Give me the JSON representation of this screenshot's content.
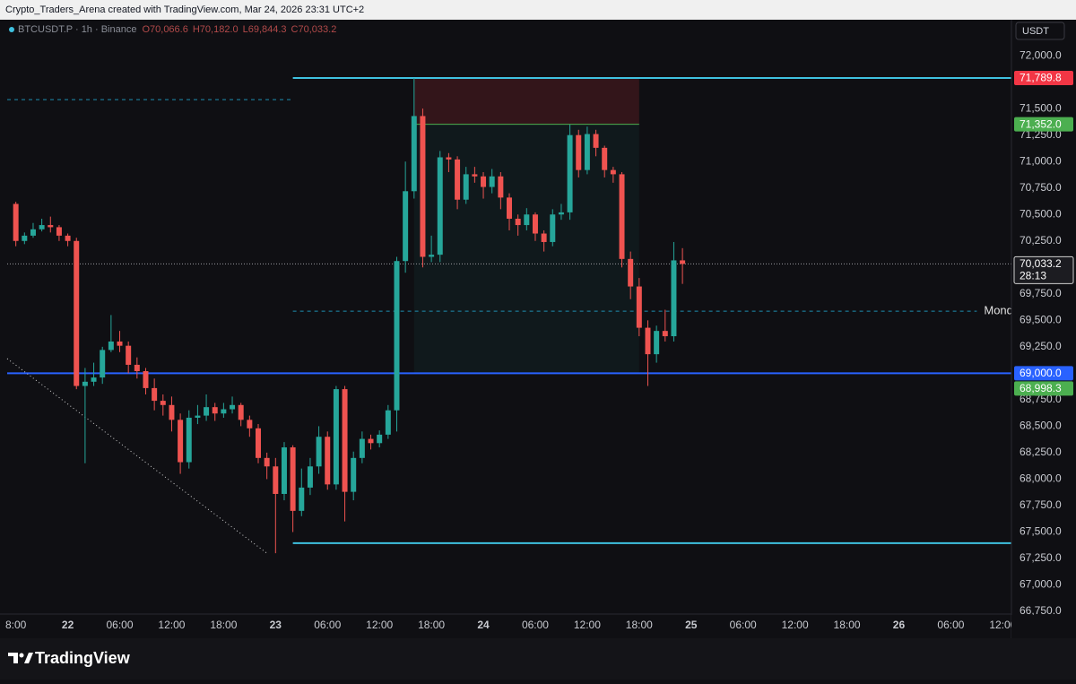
{
  "chart_data": {
    "type": "candlestick",
    "header": "Crypto_Traders_Arena created with TradingView.com, Mar 24, 2026 23:31 UTC+2",
    "legend": {
      "symbol": "BTCUSDT.P · 1h · Binance",
      "ohlc": [
        "O70,066.6",
        "H70,182.0",
        "L69,844.3",
        "C70,033.2"
      ]
    },
    "currency": "USDT",
    "brand": "TradingView",
    "up_color": "#26a69a",
    "down_color": "#ef5350",
    "x": [
      "2026-03-21T18:00",
      "2026-03-21T19:00",
      "2026-03-21T20:00",
      "2026-03-21T21:00",
      "2026-03-21T22:00",
      "2026-03-21T23:00",
      "2026-03-22T00:00",
      "2026-03-22T01:00",
      "2026-03-22T02:00",
      "2026-03-22T03:00",
      "2026-03-22T04:00",
      "2026-03-22T05:00",
      "2026-03-22T06:00",
      "2026-03-22T07:00",
      "2026-03-22T08:00",
      "2026-03-22T09:00",
      "2026-03-22T10:00",
      "2026-03-22T11:00",
      "2026-03-22T12:00",
      "2026-03-22T13:00",
      "2026-03-22T14:00",
      "2026-03-22T15:00",
      "2026-03-22T16:00",
      "2026-03-22T17:00",
      "2026-03-22T18:00",
      "2026-03-22T19:00",
      "2026-03-22T20:00",
      "2026-03-22T21:00",
      "2026-03-22T22:00",
      "2026-03-22T23:00",
      "2026-03-23T00:00",
      "2026-03-23T01:00",
      "2026-03-23T02:00",
      "2026-03-23T03:00",
      "2026-03-23T04:00",
      "2026-03-23T05:00",
      "2026-03-23T06:00",
      "2026-03-23T07:00",
      "2026-03-23T08:00",
      "2026-03-23T09:00",
      "2026-03-23T10:00",
      "2026-03-23T11:00",
      "2026-03-23T12:00",
      "2026-03-23T13:00",
      "2026-03-23T14:00",
      "2026-03-23T15:00",
      "2026-03-23T16:00",
      "2026-03-23T17:00",
      "2026-03-23T18:00",
      "2026-03-23T19:00",
      "2026-03-23T20:00",
      "2026-03-23T21:00",
      "2026-03-23T22:00",
      "2026-03-23T23:00",
      "2026-03-24T00:00",
      "2026-03-24T01:00",
      "2026-03-24T02:00",
      "2026-03-24T03:00",
      "2026-03-24T04:00",
      "2026-03-24T05:00",
      "2026-03-24T06:00",
      "2026-03-24T07:00",
      "2026-03-24T08:00",
      "2026-03-24T09:00",
      "2026-03-24T10:00",
      "2026-03-24T11:00",
      "2026-03-24T12:00",
      "2026-03-24T13:00",
      "2026-03-24T14:00",
      "2026-03-24T15:00",
      "2026-03-24T16:00",
      "2026-03-24T17:00",
      "2026-03-24T18:00",
      "2026-03-24T19:00",
      "2026-03-24T20:00",
      "2026-03-24T21:00",
      "2026-03-24T22:00",
      "2026-03-24T23:00"
    ],
    "open": [
      70600,
      70250,
      70300,
      70360,
      70400,
      70380,
      70300,
      70250,
      68880,
      68920,
      68960,
      69220,
      69300,
      69260,
      69080,
      69020,
      68860,
      68740,
      68700,
      68560,
      68160,
      68580,
      68600,
      68680,
      68620,
      68660,
      68700,
      68560,
      68480,
      68200,
      68120,
      67860,
      68300,
      67700,
      67920,
      68120,
      68400,
      67950,
      68850,
      67880,
      68200,
      68380,
      68340,
      68420,
      68650,
      70060,
      70720,
      71430,
      70100,
      70120,
      71040,
      71020,
      70640,
      70880,
      70860,
      70760,
      70860,
      70660,
      70460,
      70400,
      70500,
      70320,
      70240,
      70500,
      70520,
      71250,
      70920,
      71260,
      71130,
      70920,
      70880,
      70080,
      69820,
      69430,
      69180,
      69400,
      69350,
      70066.6
    ],
    "high": [
      70620,
      70330,
      70420,
      70460,
      70480,
      70400,
      70320,
      70280,
      69050,
      69100,
      69250,
      69550,
      69400,
      69300,
      69150,
      69050,
      68950,
      68800,
      68780,
      68620,
      68650,
      68700,
      68800,
      68720,
      68720,
      68780,
      68720,
      68600,
      68520,
      68250,
      68200,
      68350,
      68320,
      68100,
      68200,
      68500,
      68450,
      68880,
      68880,
      68260,
      68450,
      68420,
      68460,
      68700,
      70100,
      71000,
      71789.8,
      71500,
      70300,
      71100,
      71080,
      71050,
      70950,
      70950,
      70900,
      70930,
      70900,
      70700,
      70500,
      70560,
      70520,
      70350,
      70550,
      70600,
      71350,
      71300,
      71330,
      71300,
      71150,
      70950,
      70900,
      70150,
      69900,
      69500,
      69450,
      69600,
      70240,
      70182
    ],
    "low": [
      70200,
      70220,
      70280,
      70340,
      70330,
      70250,
      70200,
      68850,
      68150,
      68880,
      68900,
      69200,
      69200,
      69000,
      68950,
      68800,
      68650,
      68600,
      68450,
      68050,
      68100,
      68520,
      68550,
      68550,
      68580,
      68620,
      68500,
      68400,
      68150,
      68000,
      67300,
      67800,
      67500,
      67650,
      67850,
      68050,
      67900,
      67900,
      67600,
      67800,
      68150,
      68280,
      68300,
      68380,
      68450,
      69950,
      70650,
      70000,
      70050,
      70050,
      70900,
      70550,
      70600,
      70800,
      70650,
      70700,
      70550,
      70350,
      70300,
      70350,
      70250,
      70150,
      70200,
      70450,
      70450,
      70850,
      70880,
      71050,
      70850,
      70800,
      70000,
      69700,
      69350,
      68880,
      69100,
      69300,
      69300,
      69844.3
    ],
    "close": [
      70250,
      70300,
      70360,
      70400,
      70380,
      70300,
      70250,
      68880,
      68920,
      68960,
      69220,
      69300,
      69260,
      69080,
      69020,
      68860,
      68740,
      68700,
      68560,
      68160,
      68580,
      68600,
      68680,
      68620,
      68660,
      68700,
      68560,
      68480,
      68200,
      68120,
      67860,
      68300,
      67700,
      67920,
      68120,
      68400,
      67950,
      68850,
      67880,
      68200,
      68380,
      68340,
      68420,
      68650,
      70060,
      70720,
      71430,
      70100,
      70120,
      71040,
      71020,
      70640,
      70880,
      70860,
      70760,
      70860,
      70660,
      70460,
      70400,
      70500,
      70320,
      70240,
      70500,
      70520,
      71250,
      70920,
      71260,
      71130,
      70920,
      70880,
      70080,
      69820,
      69430,
      69180,
      69400,
      69350,
      70066.6,
      70033.2
    ],
    "xlim": [
      "2026-03-21T17:00",
      "2026-03-26T13:00"
    ],
    "xticks": [
      {
        "value": "2026-03-21T18:00",
        "label": "8:00"
      },
      {
        "value": "2026-03-22T00:00",
        "label": "22"
      },
      {
        "value": "2026-03-22T06:00",
        "label": "06:00"
      },
      {
        "value": "2026-03-22T12:00",
        "label": "12:00"
      },
      {
        "value": "2026-03-22T18:00",
        "label": "18:00"
      },
      {
        "value": "2026-03-23T00:00",
        "label": "23"
      },
      {
        "value": "2026-03-23T06:00",
        "label": "06:00"
      },
      {
        "value": "2026-03-23T12:00",
        "label": "12:00"
      },
      {
        "value": "2026-03-23T18:00",
        "label": "18:00"
      },
      {
        "value": "2026-03-24T00:00",
        "label": "24"
      },
      {
        "value": "2026-03-24T06:00",
        "label": "06:00"
      },
      {
        "value": "2026-03-24T12:00",
        "label": "12:00"
      },
      {
        "value": "2026-03-24T18:00",
        "label": "18:00"
      },
      {
        "value": "2026-03-25T00:00",
        "label": "25"
      },
      {
        "value": "2026-03-25T06:00",
        "label": "06:00"
      },
      {
        "value": "2026-03-25T12:00",
        "label": "12:00"
      },
      {
        "value": "2026-03-25T18:00",
        "label": "18:00"
      },
      {
        "value": "2026-03-26T00:00",
        "label": "26"
      },
      {
        "value": "2026-03-26T06:00",
        "label": "06:00"
      },
      {
        "value": "2026-03-26T12:00",
        "label": "12:00"
      }
    ],
    "ylim": [
      66725,
      72340
    ],
    "yticks": [
      {
        "value": 72000,
        "label": "72,000.0"
      },
      {
        "value": 71500,
        "label": "71,500.0"
      },
      {
        "value": 71250,
        "label": "71,250.0"
      },
      {
        "value": 71000,
        "label": "71,000.0"
      },
      {
        "value": 70750,
        "label": "70,750.0"
      },
      {
        "value": 70500,
        "label": "70,500.0"
      },
      {
        "value": 70250,
        "label": "70,250.0"
      },
      {
        "value": 69750,
        "label": "69,750.0"
      },
      {
        "value": 69500,
        "label": "69,500.0"
      },
      {
        "value": 69250,
        "label": "69,250.0"
      },
      {
        "value": 68750,
        "label": "68,750.0"
      },
      {
        "value": 68500,
        "label": "68,500.0"
      },
      {
        "value": 68250,
        "label": "68,250.0"
      },
      {
        "value": 68000,
        "label": "68,000.0"
      },
      {
        "value": 67750,
        "label": "67,750.0"
      },
      {
        "value": 67500,
        "label": "67,500.0"
      },
      {
        "value": 67250,
        "label": "67,250.0"
      },
      {
        "value": 67000,
        "label": "67,000.0"
      },
      {
        "value": 66750,
        "label": "66,750.0"
      }
    ],
    "levels": [
      {
        "price": 71789.8,
        "from": "2026-03-23T02:00",
        "to": "2026-03-26T13:00",
        "color": "#3fc1e0",
        "style": "solid"
      },
      {
        "price": 67395,
        "from": "2026-03-23T02:00",
        "to": "2026-03-26T13:00",
        "color": "#3fc1e0",
        "style": "solid"
      },
      {
        "price": 71585,
        "from": "2026-03-21T17:00",
        "to": "2026-03-23T02:00",
        "color": "#1f8fb0",
        "style": "dashed"
      },
      {
        "price": 69587,
        "from": "2026-03-23T02:00",
        "to": "2026-03-26T09:00",
        "color": "#1f8fb0",
        "style": "dashed",
        "text": "Mond"
      },
      {
        "price": 69000,
        "from": "2026-03-21T17:00",
        "to": "2026-03-26T13:00",
        "color": "#2962ff",
        "style": "solid",
        "badge": "69,000.0"
      }
    ],
    "position": {
      "from": "2026-03-23T16:00",
      "to": "2026-03-24T18:00",
      "stop": 71789.8,
      "stop_label": "71,789.8",
      "entry": 71352.0,
      "entry_label": "71,352.0",
      "target": 68998.3,
      "target_label": "68,998.3"
    },
    "trendline": {
      "x": [
        "2026-03-21T17:00",
        "2026-03-22T23:00"
      ],
      "y": [
        69138,
        67300
      ]
    },
    "last_price": {
      "value": 70033.2,
      "label": "70,033.2",
      "countdown": "28:13"
    }
  }
}
